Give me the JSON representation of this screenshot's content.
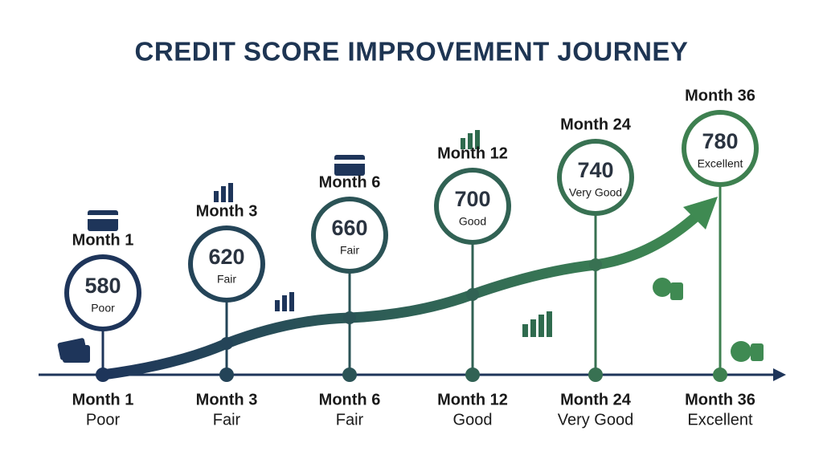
{
  "title": "CREDIT SCORE IMPROVEMENT JOURNEY",
  "milestones": [
    {
      "month": "Month 1",
      "score": 580,
      "rating": "Poor"
    },
    {
      "month": "Month 3",
      "score": 620,
      "rating": "Fair"
    },
    {
      "month": "Month 6",
      "score": 660,
      "rating": "Fair"
    },
    {
      "month": "Month 12",
      "score": 700,
      "rating": "Good"
    },
    {
      "month": "Month 24",
      "score": 740,
      "rating": "Very Good"
    },
    {
      "month": "Month 36",
      "score": 780,
      "rating": "Excellent"
    }
  ]
}
